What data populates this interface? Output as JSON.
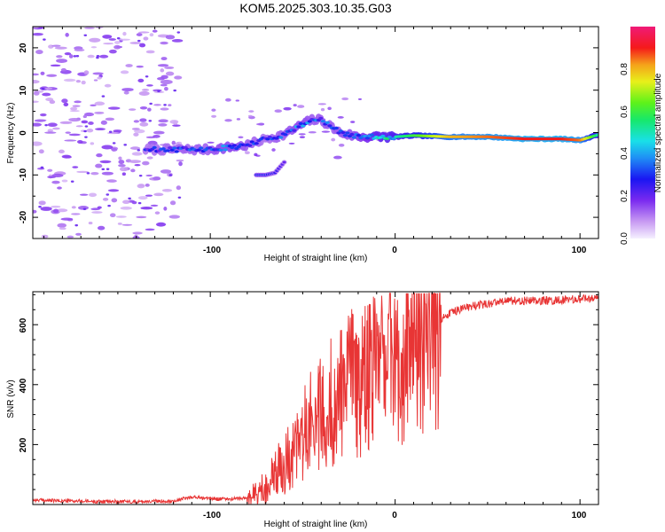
{
  "figure": {
    "title": "KOM5.2025.303.10.35.G03"
  },
  "chart_data": [
    {
      "type": "heatmap",
      "name": "spectrogram",
      "xlabel": "Height of straight line (km)",
      "ylabel": "Frequency (Hz)",
      "xlim": [
        -196,
        110
      ],
      "ylim": [
        -25,
        25
      ],
      "xticks": [
        -100,
        0,
        100
      ],
      "yticks": [
        -20,
        -10,
        0,
        10,
        20
      ],
      "xticklabels": [
        "-100",
        "0",
        "100"
      ],
      "yticklabels": [
        "-20",
        "-10",
        "0",
        "10",
        "20"
      ],
      "colorbar": {
        "label": "Normalized spectral amplitude",
        "range": [
          0,
          1
        ],
        "ticks": [
          0.0,
          0.2,
          0.4,
          0.6,
          0.8
        ],
        "ticklabels": [
          "0.0",
          "0.2",
          "0.4",
          "0.6",
          "0.8"
        ]
      },
      "ridge": {
        "x": [
          -135,
          -120,
          -100,
          -90,
          -80,
          -70,
          -60,
          -50,
          -45,
          -40,
          -35,
          -30,
          -20,
          -10,
          0,
          10,
          30,
          50,
          70,
          90,
          100,
          110
        ],
        "freq": [
          -4,
          -4,
          -4,
          -3.5,
          -3,
          -1.5,
          -0.5,
          2,
          3,
          3,
          1.5,
          0,
          -1,
          -1,
          -1,
          -0.7,
          -1,
          -1,
          -1.5,
          -1.5,
          -1.8,
          -0.5
        ],
        "amplitude": [
          0.25,
          0.28,
          0.3,
          0.35,
          0.3,
          0.25,
          0.3,
          0.35,
          0.3,
          0.3,
          0.3,
          0.3,
          0.35,
          0.45,
          0.5,
          0.6,
          0.8,
          0.85,
          0.9,
          0.9,
          0.85,
          0.5
        ]
      },
      "branch": {
        "x": [
          -75,
          -70,
          -65,
          -60
        ],
        "freq": [
          -10,
          -10,
          -9.5,
          -7
        ],
        "amplitude": [
          0.3,
          0.3,
          0.25,
          0.2
        ]
      }
    },
    {
      "type": "line",
      "name": "snr",
      "xlabel": "Height of straight line (km)",
      "ylabel": "SNR (v/v)",
      "xlim": [
        -196,
        110
      ],
      "ylim": [
        0,
        710
      ],
      "xticks": [
        -100,
        0,
        100
      ],
      "yticks": [
        200,
        400,
        600
      ],
      "xticklabels": [
        "-100",
        "0",
        "100"
      ],
      "yticklabels": [
        "200",
        "400",
        "600"
      ],
      "color": "#e83535",
      "series": [
        {
          "name": "SNR",
          "x": [
            -196,
            -180,
            -160,
            -140,
            -120,
            -110,
            -100,
            -90,
            -80,
            -75,
            -70,
            -65,
            -60,
            -55,
            -50,
            -45,
            -40,
            -35,
            -30,
            -25,
            -20,
            -15,
            -10,
            -5,
            0,
            5,
            10,
            20,
            30,
            40,
            50,
            60,
            80,
            100,
            110
          ],
          "y": [
            15,
            12,
            10,
            10,
            12,
            25,
            20,
            18,
            22,
            35,
            60,
            100,
            140,
            180,
            230,
            260,
            300,
            340,
            360,
            390,
            410,
            430,
            440,
            460,
            470,
            500,
            540,
            600,
            640,
            660,
            670,
            680,
            680,
            685,
            690
          ]
        }
      ]
    }
  ]
}
